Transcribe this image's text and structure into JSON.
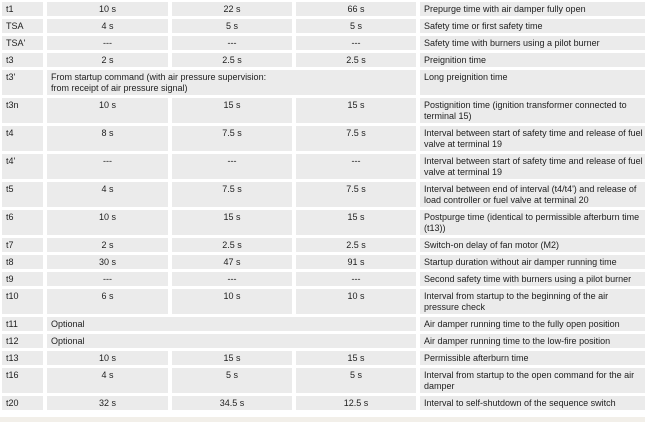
{
  "colors": {
    "cell_background": "#ebebeb",
    "text": "#1d1d1d",
    "gutter": "#ffffff",
    "bottom_strip": "#f2efe9"
  },
  "table": {
    "rows": [
      {
        "param": "t1",
        "values": [
          "10 s",
          "22 s",
          "66 s"
        ],
        "description": "Prepurge time with air damper fully open"
      },
      {
        "param": "TSA",
        "values": [
          "4 s",
          "5 s",
          "5 s"
        ],
        "description": "Safety time or first safety time"
      },
      {
        "param": "TSA'",
        "values": [
          "---",
          "---",
          "---"
        ],
        "description": "Safety time with burners using a pilot burner"
      },
      {
        "param": "t3",
        "values": [
          "2 s",
          "2.5 s",
          "2.5 s"
        ],
        "description": "Preignition time"
      },
      {
        "param": "t3'",
        "merged_value": "From startup command (with air pressure supervision:\nfrom receipt of air pressure signal)",
        "description": "Long preignition time"
      },
      {
        "param": "t3n",
        "values": [
          "10 s",
          "15 s",
          "15 s"
        ],
        "description": "Postignition time (ignition transformer connected to terminal 15)"
      },
      {
        "param": "t4",
        "values": [
          "8 s",
          "7.5 s",
          "7.5 s"
        ],
        "description": "Interval between start of safety time and release of fuel valve at terminal 19"
      },
      {
        "param": "t4'",
        "values": [
          "---",
          "---",
          "---"
        ],
        "description": "Interval between start of safety time and release of fuel valve at terminal 19"
      },
      {
        "param": "t5",
        "values": [
          "4 s",
          "7.5 s",
          "7.5 s"
        ],
        "description": "Interval between end of interval (t4/t4') and release of load controller or fuel valve at terminal 20"
      },
      {
        "param": "t6",
        "values": [
          "10 s",
          "15 s",
          "15 s"
        ],
        "description": "Postpurge time (identical to permissible afterburn time (t13))"
      },
      {
        "param": "t7",
        "values": [
          "2 s",
          "2.5 s",
          "2.5 s"
        ],
        "description": "Switch-on delay of fan motor (M2)"
      },
      {
        "param": "t8",
        "values": [
          "30 s",
          "47 s",
          "91 s"
        ],
        "description": "Startup duration without air damper running time"
      },
      {
        "param": "t9",
        "values": [
          "---",
          "---",
          "---"
        ],
        "description": "Second safety time with burners using a pilot burner"
      },
      {
        "param": "t10",
        "values": [
          "6 s",
          "10 s",
          "10 s"
        ],
        "description": "Interval from startup to the beginning of the air pressure check"
      },
      {
        "param": "t11",
        "merged_value": "Optional",
        "description": "Air damper running time to the fully open position"
      },
      {
        "param": "t12",
        "merged_value": "Optional",
        "description": "Air damper running time to the low-fire position"
      },
      {
        "param": "t13",
        "values": [
          "10 s",
          "15 s",
          "15 s"
        ],
        "description": "Permissible afterburn time"
      },
      {
        "param": "t16",
        "values": [
          "4 s",
          "5 s",
          "5 s"
        ],
        "description": "Interval from startup to the open command for the air damper"
      },
      {
        "param": "t20",
        "values": [
          "32 s",
          "34.5 s",
          "12.5 s"
        ],
        "description": "Interval to self-shutdown of the sequence switch"
      }
    ]
  }
}
